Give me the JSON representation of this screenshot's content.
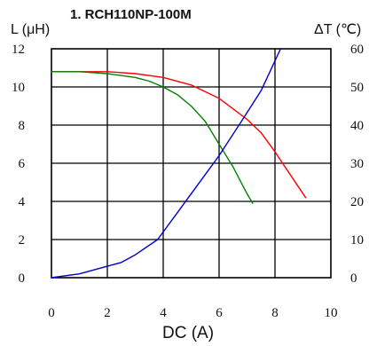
{
  "chart_data": {
    "type": "line",
    "title": "1. RCH110NP-100M",
    "xlabel": "DC (A)",
    "ylabel_left": "L (μH)",
    "ylabel_right": "ΔT (℃)",
    "xlim": [
      0,
      10
    ],
    "ylim_left": [
      0,
      12
    ],
    "ylim_right": [
      0,
      60
    ],
    "x_ticks": [
      "0",
      "2",
      "4",
      "6",
      "8",
      "10"
    ],
    "y_left_ticks": [
      "0",
      "2",
      "4",
      "6",
      "8",
      "10",
      "12"
    ],
    "y_right_ticks": [
      "0",
      "10",
      "20",
      "30",
      "40",
      "50",
      "60"
    ],
    "grid": true,
    "legend": "none",
    "series": [
      {
        "axis": "left",
        "color": "#ff0000",
        "x": [
          0,
          1,
          2,
          3,
          4,
          5,
          6,
          7,
          7.5,
          8,
          8.5,
          9.1
        ],
        "y": [
          10.8,
          10.8,
          10.8,
          10.7,
          10.5,
          10.1,
          9.4,
          8.3,
          7.6,
          6.6,
          5.5,
          4.2
        ]
      },
      {
        "axis": "left",
        "color": "#008000",
        "x": [
          0,
          1,
          2,
          3,
          3.5,
          4,
          4.5,
          5,
          5.5,
          6,
          6.5,
          7,
          7.2
        ],
        "y": [
          10.8,
          10.8,
          10.7,
          10.5,
          10.3,
          10.0,
          9.6,
          9.0,
          8.2,
          7.0,
          5.8,
          4.4,
          3.9
        ]
      },
      {
        "axis": "right",
        "color": "#0000cc",
        "x": [
          0,
          1,
          2,
          2.5,
          3,
          3.8,
          4.5,
          5.2,
          6,
          6.8,
          7.5,
          8.2
        ],
        "y": [
          0,
          1,
          3,
          4,
          6,
          10,
          17,
          24,
          32,
          41,
          49,
          60
        ]
      }
    ]
  }
}
